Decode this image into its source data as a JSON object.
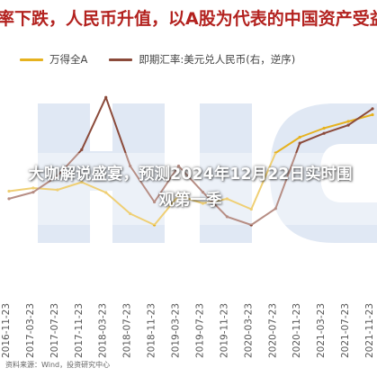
{
  "headline": "汇率下跌，人民币升值，以A股为代表的中国资产受益",
  "legend": [
    {
      "label": "万得全A",
      "color": "#e6b21f"
    },
    {
      "label": "即期汇率:美元兑人民币(右，逆序)",
      "color": "#8b4a3a"
    }
  ],
  "overlay_title": "大咖解说盛宴，预测2024年12月22日实时围观第一季",
  "source": "资料来源：Wind，投资研究中心",
  "chart_data": {
    "type": "line",
    "title": "",
    "x": [
      "2016-11-23",
      "2017-03-23",
      "2017-07-23",
      "2017-11-23",
      "2018-03-23",
      "2018-07-23",
      "2018-11-23",
      "2019-03-23",
      "2019-07-23",
      "2019-11-23",
      "2020-03-23",
      "2020-07-23",
      "2020-11-23",
      "2021-03-23",
      "2021-07-23",
      "2021-11-23"
    ],
    "series": [
      {
        "name": "万得全A",
        "values": [
          4050,
          4120,
          4080,
          4250,
          4020,
          3550,
          3300,
          3950,
          3780,
          3880,
          3650,
          4900,
          5250,
          5450,
          5600,
          5750
        ],
        "color": "#e6b21f"
      },
      {
        "name": "即期汇率:美元兑人民币(右，逆序)",
        "values": [
          6.92,
          6.88,
          6.78,
          6.62,
          6.3,
          6.72,
          6.94,
          6.72,
          6.88,
          7.03,
          7.08,
          6.98,
          6.58,
          6.52,
          6.47,
          6.37
        ],
        "color": "#8b4a3a"
      }
    ],
    "y_left_range": [
      2500,
      6500
    ],
    "y_right_range": [
      7.3,
      6.2
    ],
    "grid": false,
    "legend_position": "top"
  }
}
